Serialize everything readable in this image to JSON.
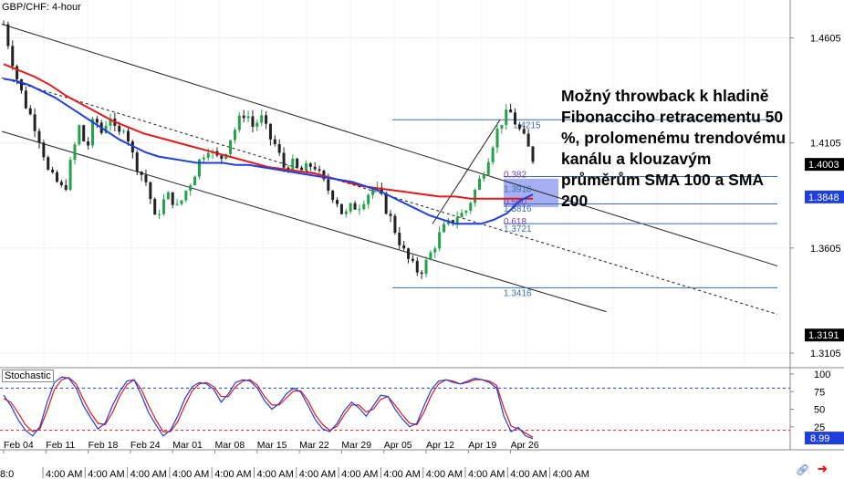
{
  "symbol_label": "GBP/CHF: 4-hour",
  "annotation": "Možný throwback k hladině Fibonacciho retracementu 50 %, prolomenému trendovému kanálu a klouzavým průměrům SMA 100 a SMA 200",
  "stochastic_label": "Stochastic",
  "colors": {
    "up_candle": "#26a04a",
    "down_candle": "#222222",
    "sma100": "#1f3fdc",
    "sma200": "#e01b1b",
    "fib_line": "#3b6ea5",
    "stoch_k": "#1f3fdc",
    "stoch_d": "#e01b1b",
    "stoch_upper": "#1f3fdc",
    "stoch_lower": "#e01b1b",
    "fib_zone": "#5b6ee8",
    "price_tag": "#000000",
    "sma_tag": "#1f3fdc"
  },
  "icons": {
    "logo": "link-icon",
    "logo2": "arrow-icon"
  },
  "chart_data": [
    {
      "type": "candlestick",
      "title": "GBP/CHF: 4-hour",
      "x_tick_labels": [
        "Feb 04",
        "Feb 11",
        "Feb 18",
        "Feb 24",
        "Mar 01",
        "Mar 08",
        "Mar 15",
        "Mar 22",
        "Mar 29",
        "Apr 05",
        "Apr 12",
        "Apr 19",
        "Apr 26"
      ],
      "x_bottom_labels": [
        "4:00 AM",
        "4:00 AM",
        "4:00 AM",
        "4:00 AM",
        "4:00 AM",
        "4:00 AM",
        "4:00 AM",
        "4:00 AM",
        "4:00 AM",
        "4:00 AM",
        "4:00 AM",
        "4:00 AM",
        "4:00 AM"
      ],
      "x_bottom_label_prefix": "8:0",
      "y_tick_labels": [
        "1.4605",
        "1.4105",
        "1.3605",
        "1.3105"
      ],
      "ylim": [
        1.304,
        1.4785
      ],
      "price_tags": [
        {
          "label": "1.4003",
          "value": 1.4003,
          "style": "price"
        },
        {
          "label": "1.3848",
          "value": 1.3848,
          "style": "sma"
        },
        {
          "label": "1.3191",
          "value": 1.3191,
          "style": "price"
        }
      ],
      "close_path": [
        1.467,
        1.452,
        1.438,
        1.428,
        1.42,
        1.41,
        1.395,
        1.392,
        1.387,
        1.403,
        1.418,
        1.407,
        1.423,
        1.415,
        1.425,
        1.412,
        1.42,
        1.405,
        1.397,
        1.391,
        1.374,
        1.382,
        1.386,
        1.379,
        1.387,
        1.394,
        1.403,
        1.409,
        1.403,
        1.404,
        1.413,
        1.42,
        1.426,
        1.418,
        1.423,
        1.414,
        1.409,
        1.399,
        1.401,
        1.397,
        1.398,
        1.401,
        1.393,
        1.388,
        1.384,
        1.375,
        1.38,
        1.381,
        1.386,
        1.389,
        1.384,
        1.376,
        1.367,
        1.358,
        1.352,
        1.349,
        1.354,
        1.362,
        1.369,
        1.372,
        1.376,
        1.377,
        1.385,
        1.393,
        1.403,
        1.414,
        1.422,
        1.425,
        1.418,
        1.411,
        1.403
      ],
      "sma100": [
        1.441,
        1.44,
        1.438,
        1.435,
        1.432,
        1.428,
        1.424,
        1.42,
        1.416,
        1.412,
        1.409,
        1.406,
        1.404,
        1.403,
        1.402,
        1.401,
        1.401,
        1.401,
        1.4,
        1.4,
        1.399,
        1.398,
        1.397,
        1.396,
        1.395,
        1.394,
        1.393,
        1.392,
        1.39,
        1.388,
        1.385,
        1.382,
        1.379,
        1.376,
        1.374,
        1.372,
        1.372,
        1.372,
        1.374,
        1.377,
        1.383,
        1.386
      ],
      "sma200": [
        1.448,
        1.445,
        1.442,
        1.438,
        1.433,
        1.429,
        1.425,
        1.421,
        1.418,
        1.415,
        1.413,
        1.411,
        1.409,
        1.407,
        1.405,
        1.403,
        1.401,
        1.399,
        1.398,
        1.397,
        1.396,
        1.394,
        1.392,
        1.39,
        1.389,
        1.388,
        1.387,
        1.386,
        1.385,
        1.385,
        1.384,
        1.384,
        1.384,
        1.384,
        1.384
      ],
      "channel_upper": [
        [
          0,
          1.467
        ],
        [
          1,
          1.352
        ]
      ],
      "channel_lower": [
        [
          0,
          1.416
        ],
        [
          1,
          1.306
        ]
      ],
      "channel_mid": [
        [
          0,
          1.4415
        ],
        [
          1,
          1.329
        ]
      ],
      "fibonacci": {
        "levels": [
          {
            "label": "1.4215",
            "value": 1.4215,
            "ratio": null
          },
          {
            "label": "0.382",
            "value": 1.3945,
            "ratio": 0.382
          },
          {
            "label": "1.3910",
            "value": 1.391,
            "ratio": null
          },
          {
            "label": "0.500",
            "value": 1.3815,
            "ratio": 0.5
          },
          {
            "label": "1.3816",
            "value": 1.3816,
            "ratio": null
          },
          {
            "label": "0.618",
            "value": 1.3721,
            "ratio": 0.618
          },
          {
            "label": "1.3721",
            "value": 1.3721,
            "ratio": null
          },
          {
            "label": "1.3416",
            "value": 1.3416,
            "ratio": null
          }
        ]
      }
    },
    {
      "type": "line",
      "title": "Stochastic",
      "ylim": [
        0,
        100
      ],
      "y_tick_labels": [
        "100",
        "75",
        "50",
        "25"
      ],
      "upper_level": 80,
      "lower_level": 20,
      "value_tag": "8.99",
      "k_values": [
        70,
        55,
        35,
        20,
        12,
        25,
        60,
        88,
        96,
        94,
        80,
        55,
        38,
        22,
        30,
        55,
        75,
        90,
        92,
        70,
        45,
        28,
        12,
        20,
        40,
        65,
        82,
        88,
        86,
        78,
        60,
        72,
        88,
        92,
        90,
        80,
        62,
        50,
        58,
        72,
        80,
        74,
        55,
        35,
        22,
        18,
        30,
        48,
        60,
        52,
        40,
        55,
        70,
        68,
        50,
        36,
        25,
        30,
        55,
        78,
        90,
        92,
        88,
        86,
        90,
        94,
        92,
        88,
        80,
        40,
        18,
        24,
        12,
        8
      ],
      "d_values": [
        65,
        60,
        45,
        28,
        18,
        22,
        48,
        78,
        92,
        95,
        86,
        64,
        45,
        30,
        28,
        45,
        68,
        85,
        92,
        78,
        55,
        35,
        18,
        18,
        32,
        55,
        76,
        86,
        88,
        82,
        68,
        68,
        82,
        90,
        92,
        84,
        68,
        56,
        56,
        66,
        76,
        76,
        62,
        42,
        28,
        20,
        26,
        42,
        56,
        56,
        46,
        50,
        64,
        68,
        56,
        42,
        30,
        28,
        46,
        70,
        86,
        92,
        90,
        86,
        88,
        92,
        92,
        90,
        84,
        52,
        26,
        22,
        16,
        10
      ]
    }
  ]
}
